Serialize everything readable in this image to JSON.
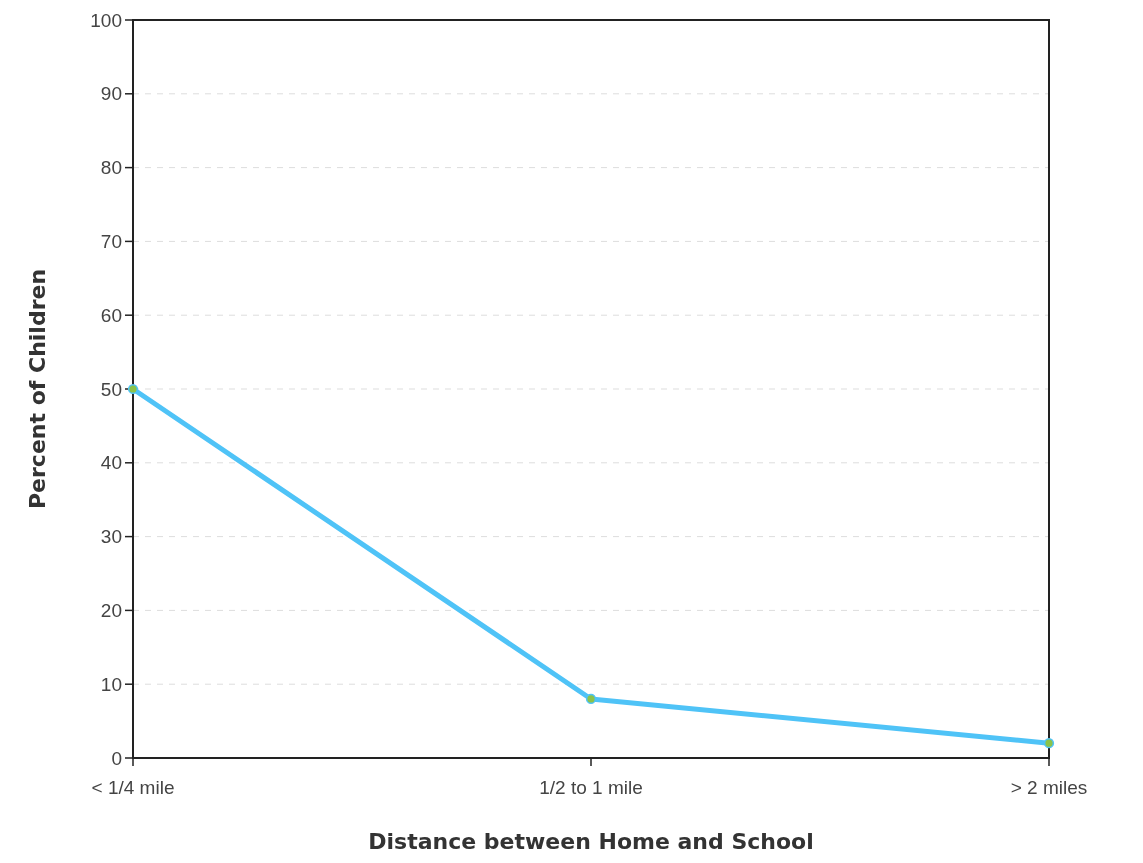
{
  "chart_data": {
    "type": "line",
    "xlabel": "Distance between Home and School",
    "ylabel": "Percent of Children",
    "categories": [
      "< 1/4 mile",
      "1/2 to 1 mile",
      "> 2 miles"
    ],
    "series": [
      {
        "color": "#4fc3f7",
        "values": [
          50,
          8,
          2
        ]
      }
    ],
    "ylim": [
      0,
      100
    ],
    "yticks": [
      0,
      10,
      20,
      30,
      40,
      50,
      60,
      70,
      80,
      90,
      100
    ],
    "grid": "y",
    "marker": "circle",
    "line_style": "solid"
  }
}
